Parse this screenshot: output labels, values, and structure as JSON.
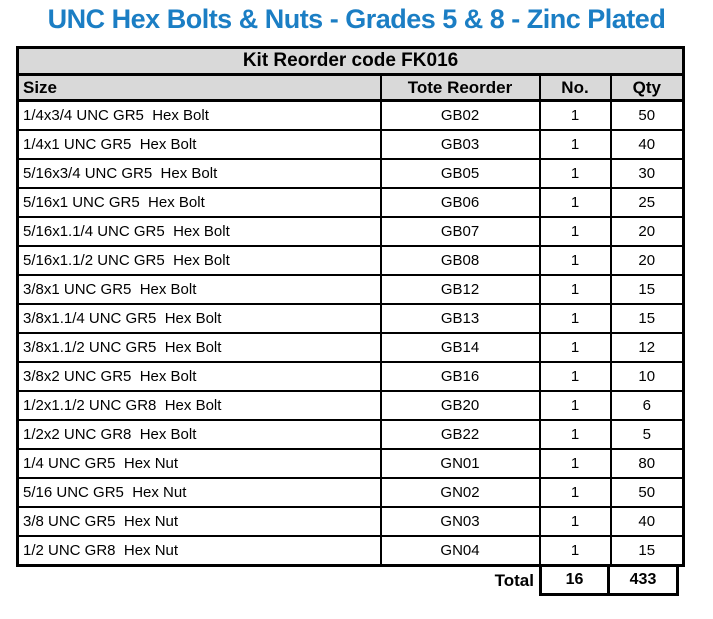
{
  "title": "UNC Hex Bolts & Nuts - Grades 5 & 8 - Zinc Plated",
  "colors": {
    "title_blue": "#1b7ec4",
    "header_gray": "#d9d9d9",
    "border_black": "#000000"
  },
  "table": {
    "kit_header": "Kit Reorder code FK016",
    "columns": [
      "Size",
      "Tote Reorder",
      "No.",
      "Qty"
    ],
    "rows": [
      [
        "1/4x3/4 UNC GR5  Hex Bolt",
        "GB02",
        "1",
        "50"
      ],
      [
        "1/4x1 UNC GR5  Hex Bolt",
        "GB03",
        "1",
        "40"
      ],
      [
        "5/16x3/4 UNC GR5  Hex Bolt",
        "GB05",
        "1",
        "30"
      ],
      [
        "5/16x1 UNC GR5  Hex Bolt",
        "GB06",
        "1",
        "25"
      ],
      [
        "5/16x1.1/4 UNC GR5  Hex Bolt",
        "GB07",
        "1",
        "20"
      ],
      [
        "5/16x1.1/2 UNC GR5  Hex Bolt",
        "GB08",
        "1",
        "20"
      ],
      [
        "3/8x1 UNC GR5  Hex Bolt",
        "GB12",
        "1",
        "15"
      ],
      [
        "3/8x1.1/4 UNC GR5  Hex Bolt",
        "GB13",
        "1",
        "15"
      ],
      [
        "3/8x1.1/2 UNC GR5  Hex Bolt",
        "GB14",
        "1",
        "12"
      ],
      [
        "3/8x2 UNC GR5  Hex Bolt",
        "GB16",
        "1",
        "10"
      ],
      [
        "1/2x1.1/2 UNC GR8  Hex Bolt",
        "GB20",
        "1",
        "6"
      ],
      [
        "1/2x2 UNC GR8  Hex Bolt",
        "GB22",
        "1",
        "5"
      ],
      [
        "1/4 UNC GR5  Hex Nut",
        "GN01",
        "1",
        "80"
      ],
      [
        "5/16 UNC GR5  Hex Nut",
        "GN02",
        "1",
        "50"
      ],
      [
        "3/8 UNC GR5  Hex Nut",
        "GN03",
        "1",
        "40"
      ],
      [
        "1/2 UNC GR8  Hex Nut",
        "GN04",
        "1",
        "15"
      ]
    ],
    "total": {
      "label": "Total",
      "no": "16",
      "qty": "433"
    }
  }
}
